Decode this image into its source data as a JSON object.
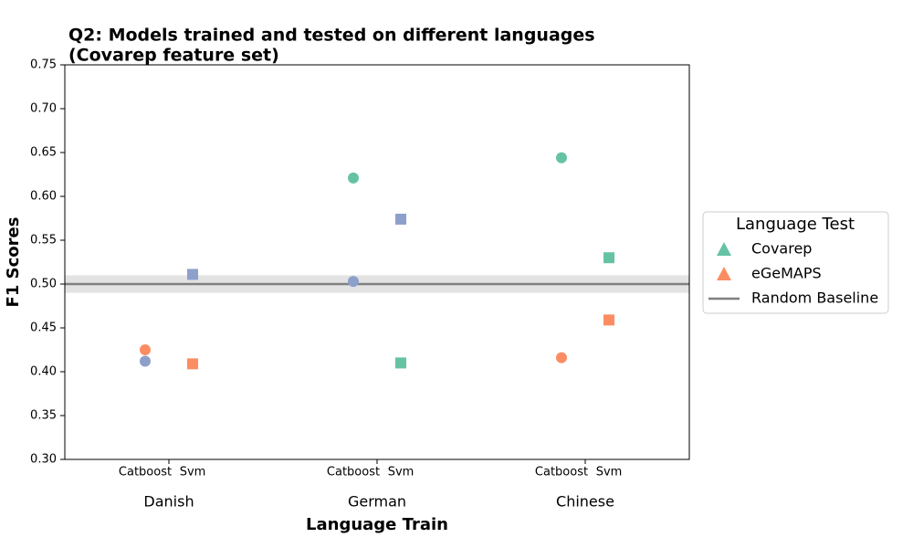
{
  "chart_data": {
    "type": "scatter",
    "title": [
      "Q2: Models trained and tested on different languages",
      "(Covarep feature set)"
    ],
    "x_label": "Language Train",
    "y_label": "F1 Scores",
    "categories": [
      "Danish",
      "German",
      "Chinese"
    ],
    "subcategories": [
      "Catboost",
      "Svm"
    ],
    "series": [
      {
        "name": "Covarep",
        "color": "#66c2a5",
        "values": [
          null,
          null,
          0.621,
          0.41,
          0.644,
          0.53
        ]
      },
      {
        "name": "eGeMAPS",
        "color": "#fc8d62",
        "values": [
          0.425,
          0.409,
          null,
          null,
          0.416,
          0.459
        ]
      },
      {
        "name": null,
        "color": "#8da0cb",
        "values": [
          0.412,
          0.511,
          0.503,
          0.574,
          null,
          null
        ]
      }
    ],
    "baseline": {
      "name": "Random Baseline",
      "value": 0.5,
      "band": [
        0.49,
        0.51
      ],
      "color": "#808080"
    },
    "legend_title": "Language Test",
    "legend": "right",
    "ylim": [
      0.3,
      0.75
    ],
    "yticks": [
      {
        "value": 0.3,
        "label": "0.30"
      },
      {
        "value": 0.35,
        "label": "0.35"
      },
      {
        "value": 0.4,
        "label": "0.40"
      },
      {
        "value": 0.45,
        "label": "0.45"
      },
      {
        "value": 0.5,
        "label": "0.50"
      },
      {
        "value": 0.55,
        "label": "0.55"
      },
      {
        "value": 0.6,
        "label": "0.60"
      },
      {
        "value": 0.65,
        "label": "0.65"
      },
      {
        "value": 0.7,
        "label": "0.70"
      },
      {
        "value": 0.75,
        "label": "0.75"
      }
    ]
  }
}
